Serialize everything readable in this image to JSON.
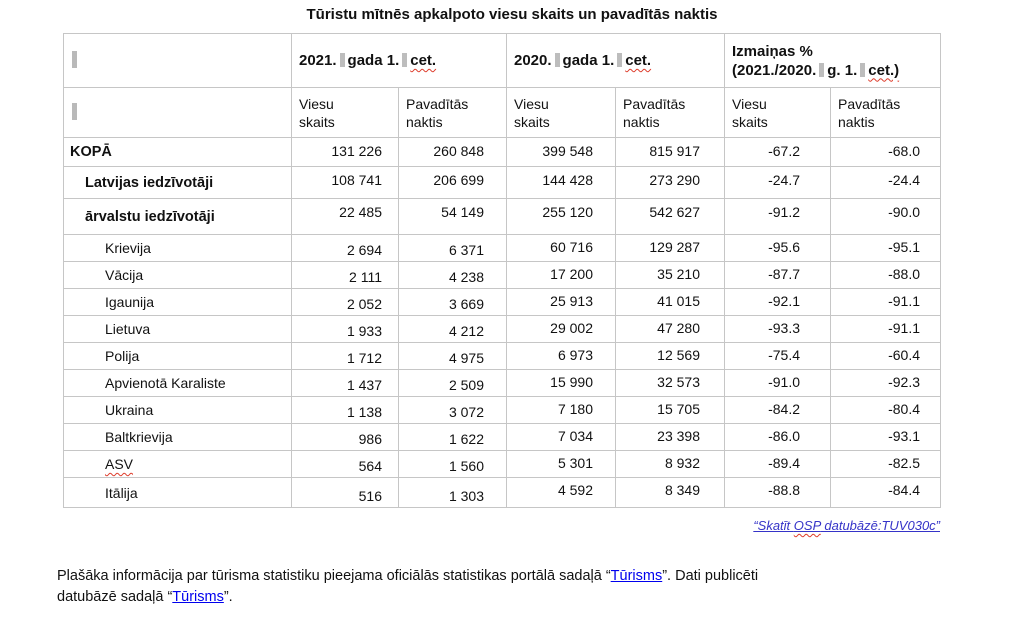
{
  "title": "Tūristu mītnēs apkalpoto viesu skaits un pavadītās naktis",
  "table": {
    "header_groups": [
      {
        "line1": null,
        "segments": [
          "2021.",
          "gada 1.",
          "cet."
        ],
        "squiggle_last": true
      },
      {
        "line1": null,
        "segments": [
          "2020.",
          "gada 1.",
          "cet."
        ],
        "squiggle_last": true
      },
      {
        "line1": "Izmaiņas %",
        "segments": [
          "(2021./2020.",
          "g. 1.",
          "cet.)"
        ],
        "squiggle_last": true
      }
    ],
    "subheaders": [
      "Viesu skaits",
      "Pavadītās naktis",
      "Viesu skaits",
      "Pavadītās naktis",
      "Viesu skaits",
      "Pavadītās naktis"
    ],
    "rows": [
      {
        "label": "KOPĀ",
        "bold": true,
        "indent": 0,
        "squiggle": false,
        "values": [
          "131 226",
          "260 848",
          "399 548",
          "815 917",
          "-67.2",
          "-68.0"
        ]
      },
      {
        "label": "Latvijas iedzīvotāji",
        "bold": true,
        "indent": 1,
        "squiggle": false,
        "values": [
          "108 741",
          "206 699",
          "144 428",
          "273 290",
          "-24.7",
          "-24.4"
        ]
      },
      {
        "label": "ārvalstu iedzīvotāji",
        "bold": true,
        "indent": 1,
        "squiggle": false,
        "values": [
          "22 485",
          "54 149",
          "255 120",
          "542 627",
          "-91.2",
          "-90.0"
        ]
      },
      {
        "label": "Krievija",
        "bold": false,
        "indent": 2,
        "squiggle": false,
        "values": [
          "2 694",
          "6 371",
          "60 716",
          "129 287",
          "-95.6",
          "-95.1"
        ]
      },
      {
        "label": "Vācija",
        "bold": false,
        "indent": 2,
        "squiggle": false,
        "values": [
          "2 111",
          "4 238",
          "17 200",
          "35 210",
          "-87.7",
          "-88.0"
        ]
      },
      {
        "label": "Igaunija",
        "bold": false,
        "indent": 2,
        "squiggle": false,
        "values": [
          "2 052",
          "3 669",
          "25 913",
          "41 015",
          "-92.1",
          "-91.1"
        ]
      },
      {
        "label": "Lietuva",
        "bold": false,
        "indent": 2,
        "squiggle": false,
        "values": [
          "1 933",
          "4 212",
          "29 002",
          "47 280",
          "-93.3",
          "-91.1"
        ]
      },
      {
        "label": "Polija",
        "bold": false,
        "indent": 2,
        "squiggle": false,
        "values": [
          "1 712",
          "4 975",
          "6 973",
          "12 569",
          "-75.4",
          "-60.4"
        ]
      },
      {
        "label": "Apvienotā Karaliste",
        "bold": false,
        "indent": 2,
        "squiggle": false,
        "values": [
          "1 437",
          "2 509",
          "15 990",
          "32 573",
          "-91.0",
          "-92.3"
        ]
      },
      {
        "label": "Ukraina",
        "bold": false,
        "indent": 2,
        "squiggle": false,
        "values": [
          "1 138",
          "3 072",
          "7 180",
          "15 705",
          "-84.2",
          "-80.4"
        ]
      },
      {
        "label": "Baltkrievija",
        "bold": false,
        "indent": 2,
        "squiggle": false,
        "values": [
          "986",
          "1 622",
          "7 034",
          "23 398",
          "-86.0",
          "-93.1"
        ]
      },
      {
        "label": "ASV",
        "bold": false,
        "indent": 2,
        "squiggle": true,
        "values": [
          "564",
          "1 560",
          "5 301",
          "8 932",
          "-89.4",
          "-82.5"
        ]
      },
      {
        "label": "Itālija",
        "bold": false,
        "indent": 2,
        "squiggle": false,
        "values": [
          "516",
          "1 303",
          "4 592",
          "8 349",
          "-88.8",
          "-84.4"
        ]
      }
    ]
  },
  "db_link": {
    "pre": "“Skatīt ",
    "squiggle": "OSP",
    "post": " datubāzē:TUV030c”"
  },
  "note": {
    "p1": "Plašāka informācija par tūrisma statistiku pieejama oficiālās statistikas portālā sadaļā “",
    "link1": "Tūrisms",
    "p2a": "”. Dati publicēti ",
    "p2b": "datubāzē sadaļā “",
    "link2": "Tūrisms",
    "p3": "”."
  },
  "colors": {
    "border_gray": "#c6c6c6",
    "formatting_mark_gray": "#bdbdbd",
    "squiggle_red": "#dd3b2a",
    "db_link_blue": "#3533c8",
    "note_link_blue": "#0000ee"
  }
}
